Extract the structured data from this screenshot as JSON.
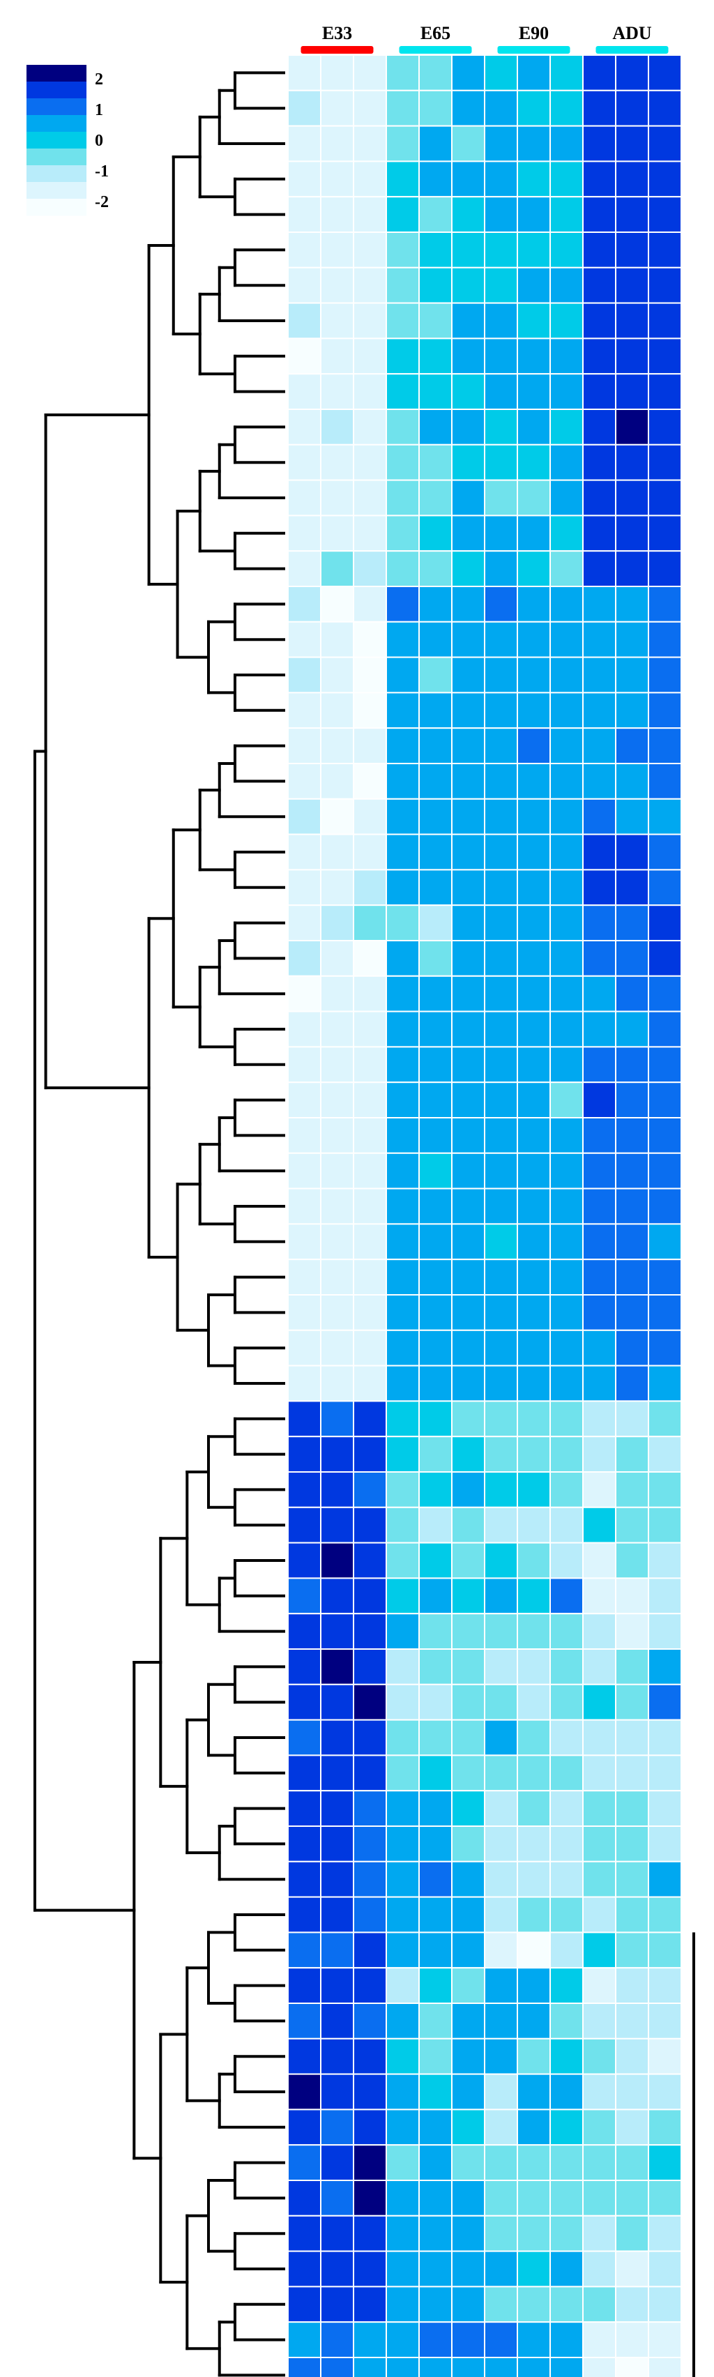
{
  "chart_data": {
    "type": "heatmap",
    "title": "",
    "groups": [
      {
        "name": "E33",
        "color": "#ff0000",
        "columns": 3
      },
      {
        "name": "E65",
        "color": "#00e5ee",
        "columns": 3
      },
      {
        "name": "E90",
        "color": "#00e5ee",
        "columns": 3
      },
      {
        "name": "ADU",
        "color": "#00e5ee",
        "columns": 3
      }
    ],
    "colorbar": {
      "ticks": [
        "2",
        "1",
        "0",
        "-1",
        "-2"
      ],
      "range": [
        -2,
        2
      ],
      "colors": [
        "#000080",
        "#0038e0",
        "#0a6ef0",
        "#00a8f0",
        "#00cbe8",
        "#70e2ec",
        "#b8ecfa",
        "#ddf5fd",
        "#f7feff"
      ]
    },
    "n_rows": 66,
    "values": [
      [
        -1.4,
        -1.5,
        -1.6,
        -0.4,
        -0.6,
        0.5,
        0.2,
        0.3,
        0.2,
        1.5,
        1.6,
        1.6
      ],
      [
        -1.2,
        -1.4,
        -1.4,
        -0.5,
        -0.3,
        0.3,
        0.3,
        0.2,
        0.2,
        1.5,
        1.4,
        1.5
      ],
      [
        -1.5,
        -1.3,
        -1.5,
        -0.3,
        0.4,
        -0.4,
        0.5,
        0.3,
        0.3,
        1.6,
        1.5,
        1.4
      ],
      [
        -1.4,
        -1.6,
        -1.5,
        0.2,
        0.6,
        0.3,
        0.3,
        0.2,
        0.2,
        1.5,
        1.6,
        1.5
      ],
      [
        -1.3,
        -1.6,
        -1.3,
        0.1,
        -0.3,
        0.1,
        0.3,
        0.3,
        0.2,
        1.6,
        1.5,
        1.6
      ],
      [
        -1.4,
        -1.5,
        -1.4,
        -0.5,
        0.2,
        0.2,
        0.2,
        0.2,
        0.2,
        1.4,
        1.5,
        1.5
      ],
      [
        -1.7,
        -1.5,
        -1.4,
        -0.4,
        0.1,
        0.2,
        0.2,
        0.3,
        0.4,
        1.4,
        1.6,
        1.3
      ],
      [
        -1.2,
        -1.5,
        -1.6,
        -0.5,
        -0.4,
        0.5,
        0.3,
        0.2,
        0.2,
        1.4,
        1.5,
        1.3
      ],
      [
        -1.8,
        -1.4,
        -1.5,
        0.2,
        0.2,
        0.3,
        0.3,
        0.4,
        0.4,
        1.4,
        1.3,
        1.5
      ],
      [
        -1.4,
        -1.5,
        -1.6,
        0.2,
        0.2,
        0.2,
        0.3,
        0.3,
        0.4,
        1.6,
        1.7,
        1.5
      ],
      [
        -1.5,
        -1.2,
        -1.3,
        -0.4,
        0.3,
        0.3,
        0.2,
        0.3,
        0.2,
        1.6,
        2.0,
        1.6
      ],
      [
        -1.4,
        -1.5,
        -1.5,
        -0.4,
        -0.5,
        0.1,
        0.2,
        0.2,
        0.3,
        1.6,
        1.7,
        1.6
      ],
      [
        -1.3,
        -1.3,
        -1.4,
        -0.5,
        -0.4,
        0.4,
        -0.6,
        -0.5,
        0.3,
        1.5,
        1.6,
        1.5
      ],
      [
        -1.3,
        -1.5,
        -1.5,
        -0.4,
        0.2,
        0.3,
        0.3,
        0.3,
        0.2,
        1.6,
        1.6,
        1.5
      ],
      [
        -1.3,
        -0.5,
        -1.2,
        -0.4,
        -0.3,
        0.1,
        0.5,
        0.2,
        -0.5,
        1.6,
        1.6,
        1.4
      ],
      [
        -1.2,
        -2.0,
        -1.5,
        0.8,
        0.5,
        0.6,
        1.0,
        0.6,
        0.5,
        0.4,
        0.6,
        1.0
      ],
      [
        -1.3,
        -1.5,
        -2.0,
        0.6,
        0.5,
        0.6,
        0.5,
        0.5,
        0.6,
        0.6,
        0.7,
        0.8
      ],
      [
        -1.2,
        -1.3,
        -1.9,
        0.4,
        -0.4,
        0.5,
        0.6,
        0.5,
        0.5,
        0.6,
        0.7,
        1.2
      ],
      [
        -1.4,
        -1.5,
        -1.8,
        0.5,
        0.6,
        0.5,
        0.5,
        0.6,
        0.4,
        0.5,
        0.6,
        0.8
      ],
      [
        -1.5,
        -1.4,
        -1.7,
        0.5,
        0.4,
        0.6,
        0.5,
        0.9,
        0.5,
        0.6,
        0.8,
        1.1
      ],
      [
        -1.6,
        -1.6,
        -1.8,
        0.6,
        0.5,
        0.5,
        0.4,
        0.5,
        0.5,
        0.5,
        0.7,
        0.8
      ],
      [
        -1.2,
        -1.9,
        -1.5,
        0.4,
        0.5,
        0.5,
        0.5,
        0.6,
        0.6,
        0.8,
        0.6,
        0.7
      ],
      [
        -1.4,
        -1.5,
        -1.6,
        0.4,
        0.5,
        0.4,
        0.4,
        0.5,
        0.5,
        1.4,
        1.3,
        0.9
      ],
      [
        -1.5,
        -1.4,
        -1.2,
        0.3,
        0.4,
        0.5,
        0.5,
        0.5,
        0.6,
        1.5,
        1.3,
        1.1
      ],
      [
        -1.3,
        -1.2,
        -0.6,
        -0.5,
        -1.2,
        0.3,
        0.4,
        0.5,
        0.5,
        1.2,
        1.2,
        1.3
      ],
      [
        -1.1,
        -1.3,
        -1.9,
        0.3,
        -0.4,
        0.5,
        0.5,
        0.5,
        0.6,
        1.1,
        1.0,
        1.5
      ],
      [
        -1.8,
        -1.3,
        -1.6,
        0.4,
        0.5,
        0.5,
        0.6,
        0.6,
        0.5,
        0.7,
        0.8,
        1.0
      ],
      [
        -1.7,
        -1.5,
        -1.4,
        0.5,
        0.6,
        0.5,
        0.5,
        0.6,
        0.5,
        0.6,
        0.7,
        0.9
      ],
      [
        -1.5,
        -1.6,
        -1.4,
        0.4,
        0.6,
        0.5,
        0.6,
        0.6,
        0.4,
        1.2,
        0.9,
        0.8
      ],
      [
        -1.5,
        -1.4,
        -1.6,
        0.5,
        0.5,
        0.6,
        0.5,
        0.5,
        -0.4,
        1.4,
        1.1,
        0.9
      ],
      [
        -1.5,
        -1.6,
        -1.5,
        0.3,
        0.5,
        0.5,
        0.5,
        0.6,
        0.5,
        0.8,
        0.8,
        0.8
      ],
      [
        -1.6,
        -1.5,
        -1.6,
        0.3,
        0.2,
        0.4,
        0.5,
        0.5,
        0.4,
        0.8,
        0.9,
        0.8
      ],
      [
        -1.5,
        -1.6,
        -1.6,
        0.5,
        0.4,
        0.4,
        0.3,
        0.5,
        0.4,
        0.9,
        0.8,
        0.8
      ],
      [
        -1.6,
        -1.6,
        -1.5,
        0.5,
        0.5,
        0.5,
        0.2,
        0.3,
        0.4,
        0.8,
        0.8,
        0.7
      ],
      [
        -1.5,
        -1.5,
        -1.6,
        0.4,
        0.5,
        0.4,
        0.4,
        0.4,
        0.3,
        0.8,
        0.9,
        0.9
      ],
      [
        -1.6,
        -1.7,
        -1.6,
        0.5,
        0.5,
        0.4,
        0.4,
        0.5,
        0.5,
        0.8,
        0.8,
        0.8
      ],
      [
        -1.7,
        -1.6,
        -1.7,
        0.5,
        0.4,
        0.5,
        0.5,
        0.5,
        0.4,
        0.7,
        0.8,
        0.9
      ],
      [
        -1.6,
        -1.6,
        -1.6,
        0.4,
        0.3,
        0.3,
        0.4,
        0.3,
        0.3,
        0.7,
        0.8,
        0.7
      ],
      [
        1.3,
        1.2,
        1.3,
        0.2,
        0.2,
        -0.4,
        -0.4,
        -0.4,
        -0.3,
        -1.0,
        -1.0,
        -0.5
      ],
      [
        1.4,
        1.5,
        1.3,
        0.2,
        -0.5,
        0.1,
        -0.3,
        -0.4,
        -0.6,
        -1.2,
        -0.5,
        -1.1
      ],
      [
        1.3,
        1.3,
        1.2,
        -0.4,
        0.2,
        0.3,
        0.2,
        0.2,
        -0.5,
        -1.3,
        -0.7,
        -0.5
      ],
      [
        1.5,
        1.4,
        1.3,
        -0.6,
        -1.0,
        -0.5,
        -1.2,
        -1.0,
        -1.1,
        0.2,
        -0.6,
        -0.5
      ],
      [
        1.5,
        2.0,
        1.4,
        -0.5,
        0.2,
        -0.4,
        0.2,
        -0.5,
        -1.0,
        -1.3,
        -0.5,
        -1.1
      ],
      [
        0.9,
        1.4,
        1.3,
        0.2,
        0.3,
        0.2,
        0.6,
        0.2,
        0.8,
        -1.5,
        -1.3,
        -1.2
      ],
      [
        1.4,
        1.3,
        1.4,
        0.7,
        -0.5,
        -0.5,
        -0.4,
        -0.6,
        -0.5,
        -1.2,
        -1.3,
        -1.1
      ],
      [
        1.5,
        2.0,
        1.3,
        -0.8,
        -0.5,
        -0.6,
        -1.0,
        -1.0,
        -0.5,
        -0.8,
        -0.4,
        0.6
      ],
      [
        1.4,
        1.5,
        2.0,
        -1.1,
        -1.2,
        -0.5,
        -0.6,
        -1.0,
        -0.5,
        0.2,
        -0.4,
        0.8
      ],
      [
        0.9,
        1.4,
        1.3,
        -0.4,
        -0.3,
        -0.6,
        0.5,
        -0.4,
        -0.8,
        -1.0,
        -1.1,
        -0.8
      ],
      [
        1.3,
        1.4,
        1.3,
        -0.5,
        0.2,
        -0.3,
        -0.4,
        -0.6,
        -0.6,
        -1.1,
        -1.2,
        -1.0
      ],
      [
        1.3,
        1.3,
        1.2,
        0.5,
        0.6,
        0.2,
        -1.2,
        -0.5,
        -1.2,
        -0.3,
        -0.7,
        -0.8
      ],
      [
        1.4,
        1.3,
        1.2,
        0.5,
        0.3,
        -0.5,
        -1.0,
        -0.9,
        -1.0,
        -0.5,
        -0.4,
        -1.0
      ],
      [
        1.5,
        1.4,
        1.0,
        0.5,
        1.0,
        0.5,
        -1.2,
        -0.8,
        -0.8,
        -0.3,
        -0.3,
        0.3
      ],
      [
        1.4,
        1.3,
        1.1,
        0.5,
        0.5,
        0.4,
        -1.0,
        -0.5,
        -0.5,
        -0.8,
        -0.5,
        -0.5
      ],
      [
        1.1,
        1.0,
        1.4,
        0.6,
        0.5,
        0.4,
        -1.5,
        -1.9,
        -1.2,
        0.2,
        -0.6,
        -0.3
      ],
      [
        1.3,
        1.3,
        1.3,
        -0.9,
        0.2,
        -0.5,
        0.3,
        0.3,
        0.2,
        -1.3,
        -1.1,
        -1.2
      ],
      [
        1.2,
        1.3,
        1.2,
        0.4,
        -0.4,
        0.3,
        0.4,
        0.3,
        -0.5,
        -1.2,
        -1.0,
        -0.8
      ],
      [
        1.4,
        1.5,
        1.3,
        0.2,
        -0.5,
        0.4,
        0.3,
        -0.5,
        0.2,
        -0.6,
        -1.1,
        -1.3
      ],
      [
        2.0,
        1.4,
        1.3,
        0.3,
        0.2,
        0.3,
        -0.8,
        0.3,
        0.6,
        -1.1,
        -0.8,
        -1.0
      ],
      [
        1.4,
        1.2,
        1.3,
        0.3,
        0.3,
        0.2,
        -1.0,
        0.3,
        0.2,
        -0.5,
        -1.2,
        -0.7
      ],
      [
        0.9,
        1.3,
        2.0,
        -0.4,
        0.5,
        -0.5,
        -0.4,
        -0.6,
        -0.5,
        -0.6,
        -0.4,
        0.2
      ],
      [
        1.3,
        1.2,
        2.0,
        0.5,
        0.4,
        0.4,
        -0.5,
        -0.4,
        -0.5,
        -0.5,
        -0.6,
        -0.6
      ],
      [
        1.5,
        1.5,
        1.4,
        0.5,
        0.5,
        0.6,
        -0.5,
        -0.6,
        -0.5,
        -1.2,
        -0.6,
        -0.8
      ],
      [
        1.3,
        1.4,
        1.3,
        0.3,
        0.5,
        0.5,
        0.3,
        0.2,
        0.4,
        -0.8,
        -1.6,
        -0.9
      ],
      [
        1.3,
        1.4,
        1.3,
        0.4,
        0.3,
        0.3,
        -0.3,
        -0.4,
        -0.3,
        -0.6,
        -1.2,
        -1.0
      ],
      [
        0.5,
        0.8,
        0.6,
        0.6,
        0.8,
        0.8,
        0.8,
        0.7,
        0.7,
        -1.4,
        -1.6,
        -1.7
      ],
      [
        0.8,
        0.9,
        0.4,
        0.6,
        0.5,
        0.6,
        0.6,
        0.6,
        0.7,
        -1.5,
        -1.8,
        -1.6
      ]
    ]
  }
}
